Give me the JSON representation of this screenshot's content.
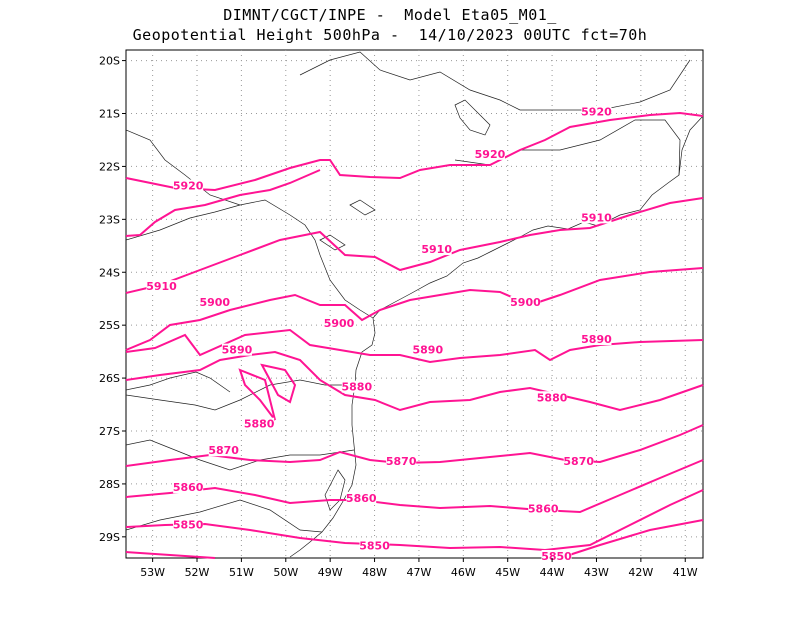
{
  "title_line1": "DIMNT/CGCT/INPE -  Model Eta05_M01_",
  "title_line2": "Geopotential Height 500hPa -  14/10/2023 00UTC fct=70h",
  "map": {
    "lon_range": [
      -53.6,
      -40.6
    ],
    "lat_range": [
      -29.4,
      -19.8
    ],
    "grid": "dotted",
    "lat_ticks": [
      "20S",
      "21S",
      "22S",
      "23S",
      "24S",
      "25S",
      "26S",
      "27S",
      "28S",
      "29S"
    ],
    "lon_ticks": [
      "53W",
      "52W",
      "51W",
      "50W",
      "49W",
      "48W",
      "47W",
      "46W",
      "45W",
      "44W",
      "43W",
      "42W",
      "41W"
    ],
    "contour_color": "#ff1493",
    "contour_levels": [
      5850,
      5860,
      5870,
      5880,
      5890,
      5900,
      5910,
      5920
    ],
    "contour_labels": [
      {
        "text": "5920",
        "lon": -43.0,
        "lat": -21.0
      },
      {
        "text": "5920",
        "lon": -45.4,
        "lat": -21.8
      },
      {
        "text": "5920",
        "lon": -52.2,
        "lat": -22.4
      },
      {
        "text": "5910",
        "lon": -43.0,
        "lat": -23.0
      },
      {
        "text": "5910",
        "lon": -46.6,
        "lat": -23.6
      },
      {
        "text": "5910",
        "lon": -52.8,
        "lat": -24.3
      },
      {
        "text": "5900",
        "lon": -51.6,
        "lat": -24.6
      },
      {
        "text": "5900",
        "lon": -48.8,
        "lat": -25.0
      },
      {
        "text": "5900",
        "lon": -44.6,
        "lat": -24.6
      },
      {
        "text": "5890",
        "lon": -51.1,
        "lat": -25.5
      },
      {
        "text": "5890",
        "lon": -46.8,
        "lat": -25.5
      },
      {
        "text": "5890",
        "lon": -43.0,
        "lat": -25.3
      },
      {
        "text": "5880",
        "lon": -48.4,
        "lat": -26.2
      },
      {
        "text": "5880",
        "lon": -50.6,
        "lat": -26.9
      },
      {
        "text": "5880",
        "lon": -44.0,
        "lat": -26.4
      },
      {
        "text": "5870",
        "lon": -51.4,
        "lat": -27.4
      },
      {
        "text": "5870",
        "lon": -47.4,
        "lat": -27.6
      },
      {
        "text": "5870",
        "lon": -43.4,
        "lat": -27.6
      },
      {
        "text": "5860",
        "lon": -52.2,
        "lat": -28.1
      },
      {
        "text": "5860",
        "lon": -48.3,
        "lat": -28.3
      },
      {
        "text": "5860",
        "lon": -44.2,
        "lat": -28.5
      },
      {
        "text": "5850",
        "lon": -52.2,
        "lat": -28.8
      },
      {
        "text": "5850",
        "lon": -48.0,
        "lat": -29.2
      },
      {
        "text": "5850",
        "lon": -43.9,
        "lat": -29.4
      }
    ]
  }
}
